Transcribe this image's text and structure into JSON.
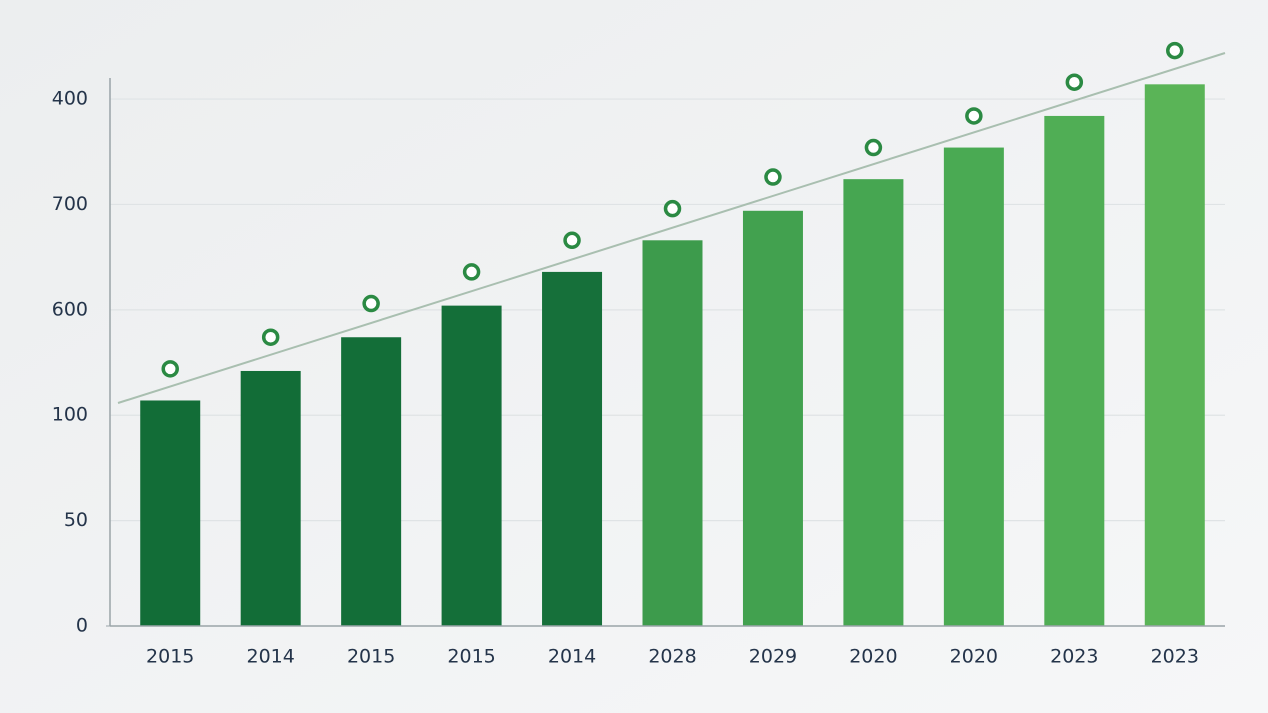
{
  "chart_data": {
    "type": "bar",
    "categories": [
      "2015",
      "2014",
      "2015",
      "2015",
      "2014",
      "2028",
      "2029",
      "2020",
      "2020",
      "2023",
      "2023"
    ],
    "series": [
      {
        "type": "bar",
        "colors": [
          "#126d37",
          "#126d37",
          "#136e38",
          "#146f39",
          "#16703a",
          "#3d9b4c",
          "#42a14f",
          "#46a651",
          "#4aaa53",
          "#50ae55",
          "#5ab457"
        ],
        "values": [
          107,
          121,
          137,
          152,
          168,
          183,
          197,
          212,
          227,
          242,
          257
        ]
      },
      {
        "type": "scatter",
        "color": "#2b8a43",
        "values": [
          122,
          137,
          153,
          168,
          183,
          198,
          213,
          227,
          242,
          258,
          273
        ]
      }
    ],
    "ylim": [
      0,
      260
    ],
    "yticks": [
      0,
      50,
      100,
      {
        "value": 150,
        "label": "600"
      },
      {
        "value": 200,
        "label": "700"
      },
      {
        "value": 250,
        "label": "400"
      }
    ],
    "grid": true
  }
}
